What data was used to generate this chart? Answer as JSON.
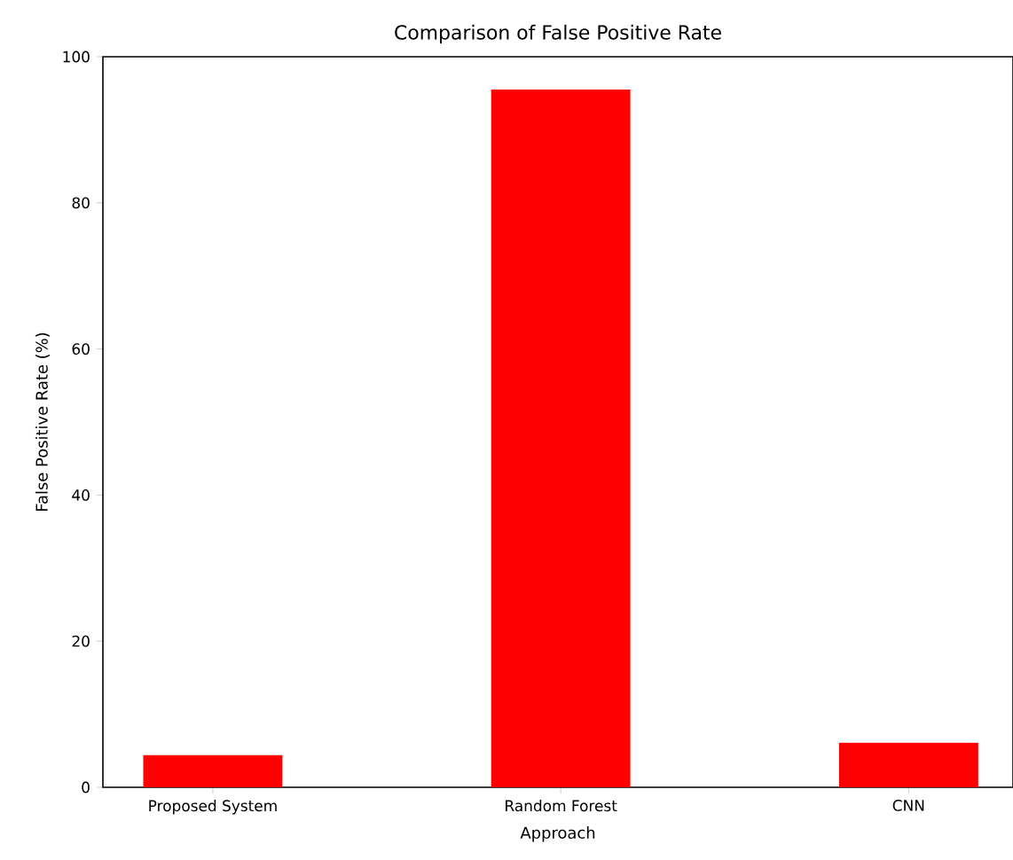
{
  "chart_data": {
    "type": "bar",
    "title": "Comparison of False Positive Rate",
    "xlabel": "Approach",
    "ylabel": "False Positive Rate (%)",
    "categories": [
      "Proposed System",
      "Random Forest",
      "CNN"
    ],
    "values": [
      4.4,
      95.5,
      6.1
    ],
    "color": "#ff0000",
    "ylim": [
      0,
      100
    ],
    "yticks": [
      0,
      20,
      40,
      60,
      80,
      100
    ]
  }
}
